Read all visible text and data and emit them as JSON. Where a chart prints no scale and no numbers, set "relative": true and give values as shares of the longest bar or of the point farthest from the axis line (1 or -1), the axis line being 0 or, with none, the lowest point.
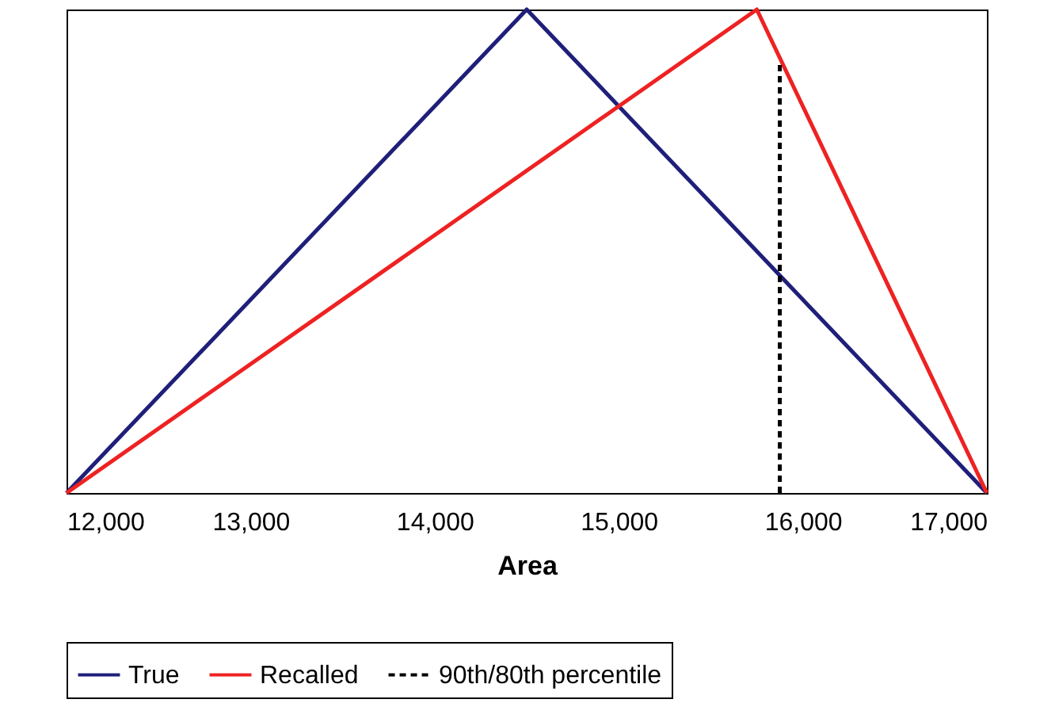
{
  "chart_data": {
    "type": "line",
    "xlabel": "Area",
    "relative": true,
    "xlim": [
      12000,
      17000
    ],
    "xticks": [
      {
        "value": 12000,
        "label": "12,000"
      },
      {
        "value": 13000,
        "label": "13,000"
      },
      {
        "value": 14000,
        "label": "14,000"
      },
      {
        "value": 15000,
        "label": "15,000"
      },
      {
        "value": 16000,
        "label": "16,000"
      },
      {
        "value": 17000,
        "label": "17,000"
      }
    ],
    "grid": false,
    "legend": "bottom",
    "marker": "none",
    "series": [
      {
        "name": "True",
        "color": "#1f1f7a",
        "x": [
          12000,
          14500,
          17000
        ],
        "values": [
          0,
          1,
          0
        ],
        "line_style": "solid"
      },
      {
        "name": "Recalled",
        "color": "#ee2222",
        "x": [
          12000,
          15750,
          17000
        ],
        "values": [
          0,
          1,
          0
        ],
        "line_style": "solid"
      },
      {
        "name": "90th/80th percentile",
        "color": "#000000",
        "x": [
          15875,
          15875
        ],
        "values": [
          0,
          0.89
        ],
        "line_style": "dashed"
      }
    ]
  }
}
